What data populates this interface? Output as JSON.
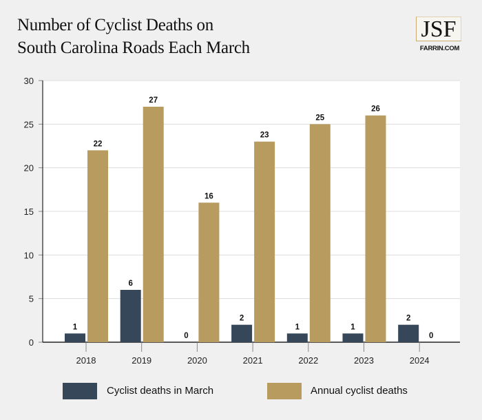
{
  "header": {
    "title_line1": "Number of Cyclist Deaths on",
    "title_line2": "South Carolina Roads Each March",
    "logo_text": "JSF",
    "logo_sub": "FARRIN.COM"
  },
  "chart_data": {
    "type": "bar",
    "title": "Number of Cyclist Deaths on South Carolina Roads Each March",
    "categories": [
      "2018",
      "2019",
      "2020",
      "2021",
      "2022",
      "2023",
      "2024"
    ],
    "series": [
      {
        "name": "Cyclist deaths in March",
        "color": "#36475a",
        "values": [
          1,
          6,
          0,
          2,
          1,
          1,
          2
        ]
      },
      {
        "name": "Annual cyclist deaths",
        "color": "#b89b5e",
        "values": [
          22,
          27,
          16,
          23,
          25,
          26,
          0
        ]
      }
    ],
    "ylim": [
      0,
      30
    ],
    "yticks": [
      0,
      5,
      10,
      15,
      20,
      25,
      30
    ],
    "grid": true,
    "legend": "bottom",
    "xlabel": "",
    "ylabel": ""
  }
}
